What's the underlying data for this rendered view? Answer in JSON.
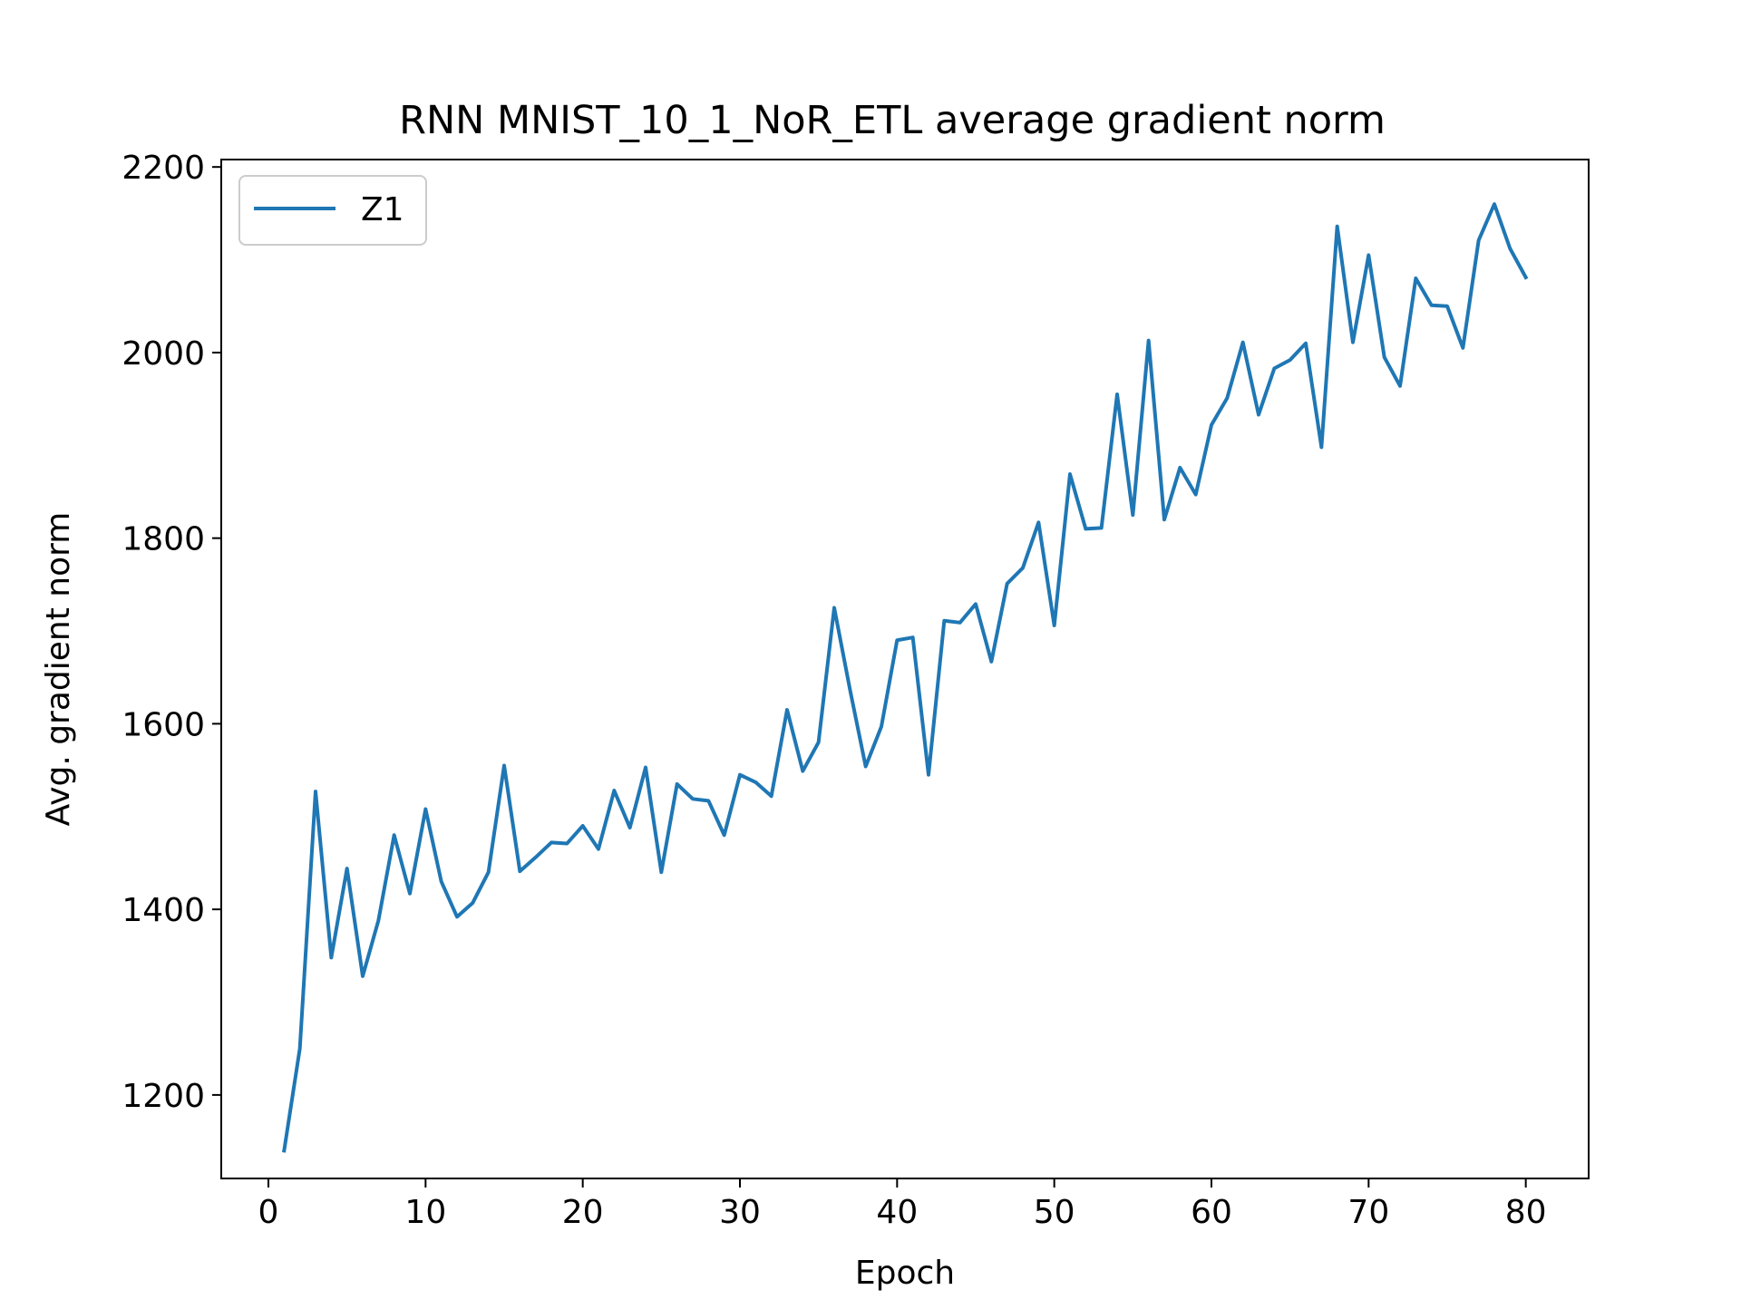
{
  "chart_data": {
    "type": "line",
    "title": "RNN MNIST_10_1_NoR_ETL average gradient norm",
    "xlabel": "Epoch",
    "ylabel": "Avg. gradient norm",
    "xlim": [
      -3,
      84
    ],
    "ylim": [
      1110,
      2208
    ],
    "xticks": [
      0,
      10,
      20,
      30,
      40,
      50,
      60,
      70,
      80
    ],
    "yticks": [
      1200,
      1400,
      1600,
      1800,
      2000,
      2200
    ],
    "grid": false,
    "legend": {
      "position": "upper-left",
      "entries": [
        "Z1"
      ]
    },
    "series": [
      {
        "name": "Z1",
        "color": "#1f77b4",
        "x": [
          1,
          2,
          3,
          4,
          5,
          6,
          7,
          8,
          9,
          10,
          11,
          12,
          13,
          14,
          15,
          16,
          17,
          18,
          19,
          20,
          21,
          22,
          23,
          24,
          25,
          26,
          27,
          28,
          29,
          30,
          31,
          32,
          33,
          34,
          35,
          36,
          37,
          38,
          39,
          40,
          41,
          42,
          43,
          44,
          45,
          46,
          47,
          48,
          49,
          50,
          51,
          52,
          53,
          54,
          55,
          56,
          57,
          58,
          59,
          60,
          61,
          62,
          63,
          64,
          65,
          66,
          67,
          68,
          69,
          70,
          71,
          72,
          73,
          74,
          75,
          76,
          77,
          78,
          79,
          80
        ],
        "values": [
          1140,
          1250,
          1527,
          1348,
          1444,
          1328,
          1388,
          1480,
          1417,
          1508,
          1430,
          1392,
          1407,
          1440,
          1555,
          1441,
          1456,
          1472,
          1471,
          1490,
          1465,
          1528,
          1488,
          1553,
          1440,
          1535,
          1519,
          1517,
          1480,
          1545,
          1537,
          1522,
          1615,
          1549,
          1580,
          1725,
          1637,
          1554,
          1597,
          1690,
          1693,
          1545,
          1711,
          1709,
          1729,
          1667,
          1751,
          1768,
          1817,
          1706,
          1869,
          1810,
          1811,
          1955,
          1825,
          2013,
          1820,
          1876,
          1847,
          1922,
          1951,
          2011,
          1933,
          1983,
          1992,
          2010,
          1898,
          2136,
          2011,
          2105,
          1995,
          1964,
          2080,
          2051,
          2050,
          2005,
          2121,
          2160,
          2112,
          2081
        ]
      }
    ]
  }
}
